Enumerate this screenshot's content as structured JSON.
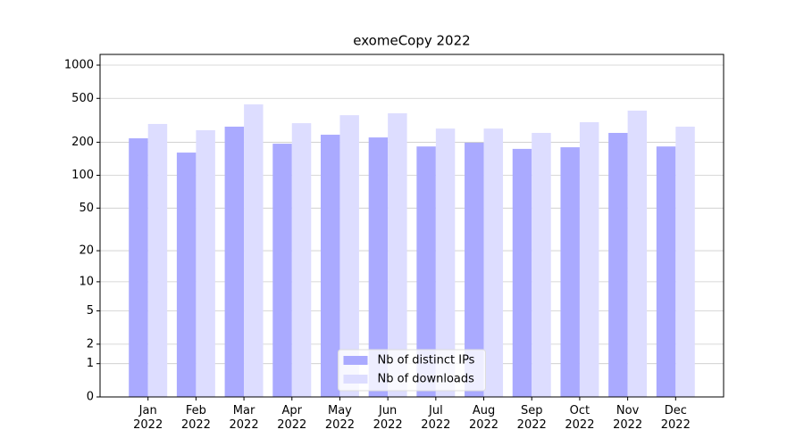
{
  "chart_data": {
    "type": "bar",
    "title": "exomeCopy 2022",
    "categories": [
      "Jan\n2022",
      "Feb\n2022",
      "Mar\n2022",
      "Apr\n2022",
      "May\n2022",
      "Jun\n2022",
      "Jul\n2022",
      "Aug\n2022",
      "Sep\n2022",
      "Oct\n2022",
      "Nov\n2022",
      "Dec\n2022"
    ],
    "series": [
      {
        "name": "Nb of distinct IPs",
        "color": "#aaaaff",
        "values": [
          217,
          161,
          277,
          194,
          234,
          221,
          183,
          198,
          174,
          180,
          243,
          183
        ]
      },
      {
        "name": "Nb of downloads",
        "color": "#ddddff",
        "values": [
          293,
          257,
          441,
          298,
          352,
          366,
          266,
          266,
          243,
          304,
          387,
          277
        ]
      }
    ],
    "yscale": "log1p",
    "ylim": [
      0,
      1250
    ],
    "yticks": [
      0,
      1,
      2,
      5,
      10,
      20,
      50,
      100,
      200,
      500,
      1000
    ],
    "grid": true,
    "legend": "lower center"
  }
}
